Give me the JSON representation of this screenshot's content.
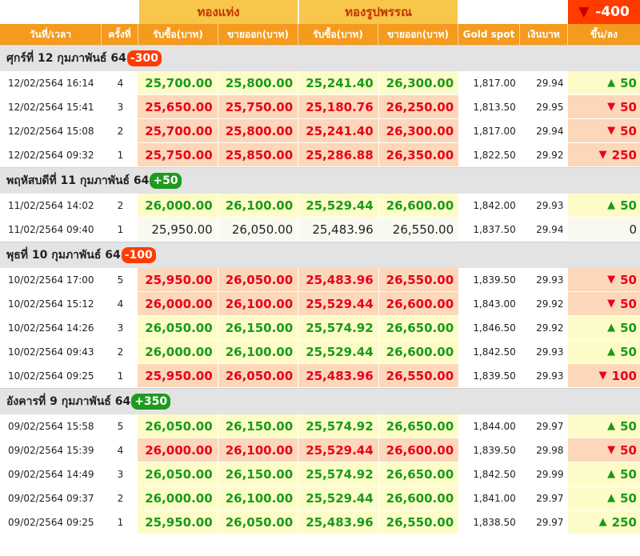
{
  "header": {
    "bar_gold": "ทองแท่ง",
    "ornament_gold": "ทองรูปพรรณ",
    "total_change": "-400",
    "columns": [
      "วันที่/เวลา",
      "ครั้งที่",
      "รับซื้อ(บาท)",
      "ขายออก(บาท)",
      "รับซื้อ(บาท)",
      "ขายออก(บาท)",
      "Gold spot",
      "เงินบาท",
      "ขึ้น/ลง"
    ]
  },
  "colors": {
    "up": "#1a9a1a",
    "down": "#e8001a",
    "header_orange": "#f49a1d",
    "gold_header": "#f7c64a"
  },
  "days": [
    {
      "title": "ศุกร์ที่ 12 กุมภาพันธ์ 64",
      "change": "-300",
      "dir": "down",
      "rows": [
        {
          "time": "12/02/2564 16:14",
          "no": "4",
          "bar_buy": "25,700.00",
          "bar_sell": "25,800.00",
          "orn_buy": "25,241.40",
          "orn_sell": "26,300.00",
          "spot": "1,817.00",
          "thb": "29.94",
          "diff": "50",
          "dir": "up"
        },
        {
          "time": "12/02/2564 15:41",
          "no": "3",
          "bar_buy": "25,650.00",
          "bar_sell": "25,750.00",
          "orn_buy": "25,180.76",
          "orn_sell": "26,250.00",
          "spot": "1,813.50",
          "thb": "29.95",
          "diff": "50",
          "dir": "down"
        },
        {
          "time": "12/02/2564 15:08",
          "no": "2",
          "bar_buy": "25,700.00",
          "bar_sell": "25,800.00",
          "orn_buy": "25,241.40",
          "orn_sell": "26,300.00",
          "spot": "1,817.00",
          "thb": "29.94",
          "diff": "50",
          "dir": "down"
        },
        {
          "time": "12/02/2564 09:32",
          "no": "1",
          "bar_buy": "25,750.00",
          "bar_sell": "25,850.00",
          "orn_buy": "25,286.88",
          "orn_sell": "26,350.00",
          "spot": "1,822.50",
          "thb": "29.92",
          "diff": "250",
          "dir": "down"
        }
      ]
    },
    {
      "title": "พฤหัสบดีที่ 11 กุมภาพันธ์ 64",
      "change": "+50",
      "dir": "up",
      "rows": [
        {
          "time": "11/02/2564 14:02",
          "no": "2",
          "bar_buy": "26,000.00",
          "bar_sell": "26,100.00",
          "orn_buy": "25,529.44",
          "orn_sell": "26,600.00",
          "spot": "1,842.00",
          "thb": "29.93",
          "diff": "50",
          "dir": "up"
        },
        {
          "time": "11/02/2564 09:40",
          "no": "1",
          "bar_buy": "25,950.00",
          "bar_sell": "26,050.00",
          "orn_buy": "25,483.96",
          "orn_sell": "26,550.00",
          "spot": "1,837.50",
          "thb": "29.94",
          "diff": "0",
          "dir": "flat"
        }
      ]
    },
    {
      "title": "พุธที่ 10 กุมภาพันธ์ 64",
      "change": "-100",
      "dir": "down",
      "rows": [
        {
          "time": "10/02/2564 17:00",
          "no": "5",
          "bar_buy": "25,950.00",
          "bar_sell": "26,050.00",
          "orn_buy": "25,483.96",
          "orn_sell": "26,550.00",
          "spot": "1,839.50",
          "thb": "29.93",
          "diff": "50",
          "dir": "down"
        },
        {
          "time": "10/02/2564 15:12",
          "no": "4",
          "bar_buy": "26,000.00",
          "bar_sell": "26,100.00",
          "orn_buy": "25,529.44",
          "orn_sell": "26,600.00",
          "spot": "1,843.00",
          "thb": "29.92",
          "diff": "50",
          "dir": "down"
        },
        {
          "time": "10/02/2564 14:26",
          "no": "3",
          "bar_buy": "26,050.00",
          "bar_sell": "26,150.00",
          "orn_buy": "25,574.92",
          "orn_sell": "26,650.00",
          "spot": "1,846.50",
          "thb": "29.92",
          "diff": "50",
          "dir": "up"
        },
        {
          "time": "10/02/2564 09:43",
          "no": "2",
          "bar_buy": "26,000.00",
          "bar_sell": "26,100.00",
          "orn_buy": "25,529.44",
          "orn_sell": "26,600.00",
          "spot": "1,842.50",
          "thb": "29.93",
          "diff": "50",
          "dir": "up"
        },
        {
          "time": "10/02/2564 09:25",
          "no": "1",
          "bar_buy": "25,950.00",
          "bar_sell": "26,050.00",
          "orn_buy": "25,483.96",
          "orn_sell": "26,550.00",
          "spot": "1,839.50",
          "thb": "29.93",
          "diff": "100",
          "dir": "down"
        }
      ]
    },
    {
      "title": "อังคารที่ 9 กุมภาพันธ์ 64",
      "change": "+350",
      "dir": "up",
      "rows": [
        {
          "time": "09/02/2564 15:58",
          "no": "5",
          "bar_buy": "26,050.00",
          "bar_sell": "26,150.00",
          "orn_buy": "25,574.92",
          "orn_sell": "26,650.00",
          "spot": "1,844.00",
          "thb": "29.97",
          "diff": "50",
          "dir": "up"
        },
        {
          "time": "09/02/2564 15:39",
          "no": "4",
          "bar_buy": "26,000.00",
          "bar_sell": "26,100.00",
          "orn_buy": "25,529.44",
          "orn_sell": "26,600.00",
          "spot": "1,839.50",
          "thb": "29.98",
          "diff": "50",
          "dir": "down"
        },
        {
          "time": "09/02/2564 14:49",
          "no": "3",
          "bar_buy": "26,050.00",
          "bar_sell": "26,150.00",
          "orn_buy": "25,574.92",
          "orn_sell": "26,650.00",
          "spot": "1,842.50",
          "thb": "29.99",
          "diff": "50",
          "dir": "up"
        },
        {
          "time": "09/02/2564 09:37",
          "no": "2",
          "bar_buy": "26,000.00",
          "bar_sell": "26,100.00",
          "orn_buy": "25,529.44",
          "orn_sell": "26,600.00",
          "spot": "1,841.00",
          "thb": "29.97",
          "diff": "50",
          "dir": "up"
        },
        {
          "time": "09/02/2564 09:25",
          "no": "1",
          "bar_buy": "25,950.00",
          "bar_sell": "26,050.00",
          "orn_buy": "25,483.96",
          "orn_sell": "26,550.00",
          "spot": "1,838.50",
          "thb": "29.97",
          "diff": "250",
          "dir": "up"
        }
      ]
    }
  ]
}
